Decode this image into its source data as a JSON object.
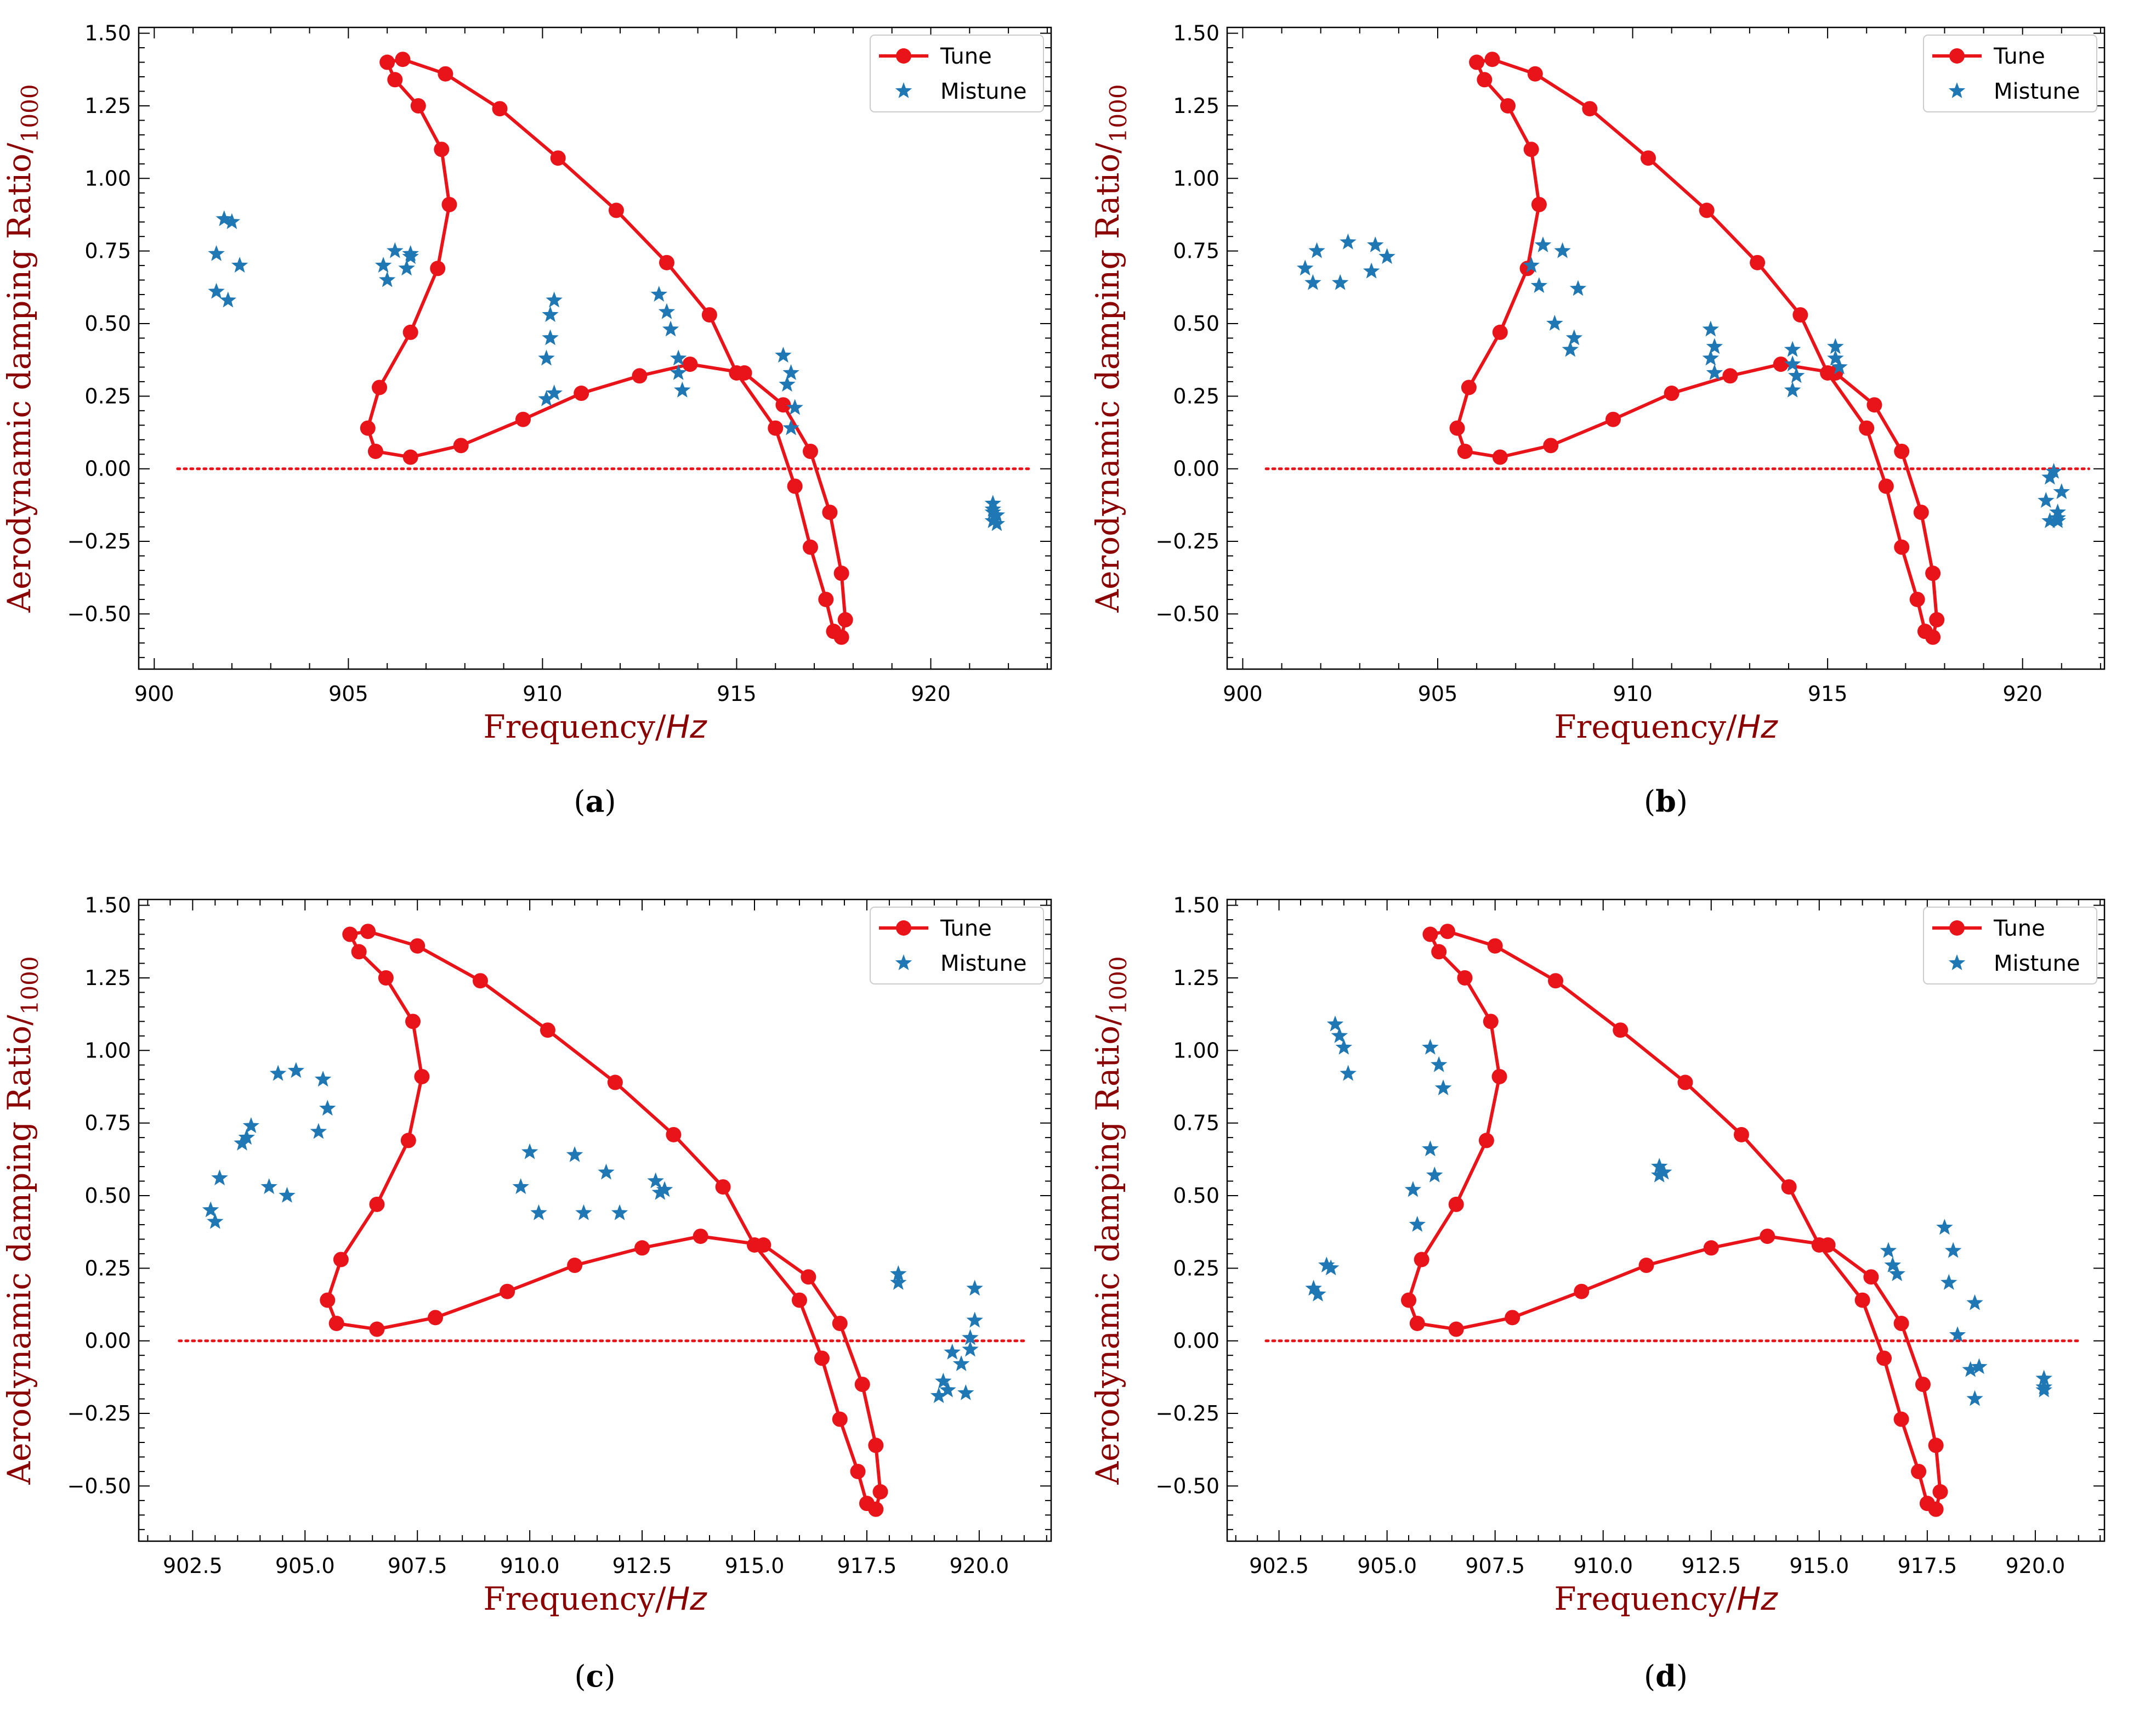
{
  "colors": {
    "tune": "#e8141a",
    "mistune": "#1f77b4",
    "zero_line": "#e8141a",
    "axis_label": "#8b0000",
    "frame": "#000000"
  },
  "chart_data": [
    {
      "id": "a",
      "type": "line+scatter",
      "caption_letter": "a",
      "xlabel_main": "Frequency/",
      "xlabel_unit": "Hz",
      "ylabel": "Aerodynamic damping Ratio/",
      "ylabel_sub": "1000",
      "xlim": [
        899.6,
        923.1
      ],
      "ylim": [
        -0.69,
        1.52
      ],
      "xticks": [
        900,
        905,
        910,
        915,
        920
      ],
      "xtick_labels": [
        "900",
        "905",
        "910",
        "915",
        "920"
      ],
      "yticks": [
        -0.5,
        -0.25,
        0.0,
        0.25,
        0.5,
        0.75,
        1.0,
        1.25,
        1.5
      ],
      "ytick_labels": [
        "−0.50",
        "−0.25",
        "0.00",
        "0.25",
        "0.50",
        "0.75",
        "1.00",
        "1.25",
        "1.50"
      ],
      "zero_line_x": [
        900.6,
        922.6
      ],
      "legend": [
        "Tune",
        "Mistune"
      ],
      "tune": {
        "x": [
          906.0,
          906.2,
          906.8,
          907.4,
          907.6,
          907.3,
          906.6,
          905.8,
          905.5,
          905.7,
          906.6,
          907.9,
          909.5,
          911.0,
          912.5,
          913.8,
          915.2,
          916.2,
          916.9,
          917.4,
          917.7,
          917.8,
          917.7,
          917.5,
          917.3,
          916.9,
          916.5,
          916.0,
          915.0,
          914.3,
          913.2,
          911.9,
          910.4,
          908.9,
          907.5,
          906.4,
          906.0
        ],
        "y": [
          1.4,
          1.34,
          1.25,
          1.1,
          0.91,
          0.69,
          0.47,
          0.28,
          0.14,
          0.06,
          0.04,
          0.08,
          0.17,
          0.26,
          0.32,
          0.36,
          0.33,
          0.22,
          0.06,
          -0.15,
          -0.36,
          -0.52,
          -0.58,
          -0.56,
          -0.45,
          -0.27,
          -0.06,
          0.14,
          0.33,
          0.53,
          0.71,
          0.89,
          1.07,
          1.24,
          1.36,
          1.41,
          1.4
        ]
      },
      "mistune": {
        "x": [
          901.6,
          901.6,
          901.8,
          901.9,
          902.0,
          902.2,
          905.9,
          906.0,
          906.2,
          906.5,
          906.6,
          906.6,
          910.1,
          910.1,
          910.2,
          910.2,
          910.3,
          910.3,
          913.0,
          913.2,
          913.3,
          913.5,
          913.6,
          913.5,
          916.2,
          916.3,
          916.4,
          916.5,
          916.4,
          921.6,
          921.6,
          921.7,
          921.6,
          921.7,
          921.6
        ],
        "y": [
          0.74,
          0.61,
          0.86,
          0.58,
          0.85,
          0.7,
          0.7,
          0.65,
          0.75,
          0.69,
          0.74,
          0.73,
          0.24,
          0.38,
          0.45,
          0.53,
          0.58,
          0.26,
          0.6,
          0.54,
          0.48,
          0.38,
          0.27,
          0.33,
          0.39,
          0.29,
          0.33,
          0.21,
          0.14,
          -0.12,
          -0.14,
          -0.16,
          -0.18,
          -0.19,
          -0.15
        ]
      }
    },
    {
      "id": "b",
      "type": "line+scatter",
      "caption_letter": "b",
      "xlabel_main": "Frequency/",
      "xlabel_unit": "Hz",
      "ylabel": "Aerodynamic damping Ratio/",
      "ylabel_sub": "1000",
      "xlim": [
        899.6,
        922.1
      ],
      "ylim": [
        -0.69,
        1.52
      ],
      "xticks": [
        900,
        905,
        910,
        915,
        920
      ],
      "xtick_labels": [
        "900",
        "905",
        "910",
        "915",
        "920"
      ],
      "yticks": [
        -0.5,
        -0.25,
        0.0,
        0.25,
        0.5,
        0.75,
        1.0,
        1.25,
        1.5
      ],
      "ytick_labels": [
        "−0.50",
        "−0.25",
        "0.00",
        "0.25",
        "0.50",
        "0.75",
        "1.00",
        "1.25",
        "1.50"
      ],
      "zero_line_x": [
        900.6,
        921.7
      ],
      "legend": [
        "Tune",
        "Mistune"
      ],
      "tune": {
        "x": [
          906.0,
          906.2,
          906.8,
          907.4,
          907.6,
          907.3,
          906.6,
          905.8,
          905.5,
          905.7,
          906.6,
          907.9,
          909.5,
          911.0,
          912.5,
          913.8,
          915.2,
          916.2,
          916.9,
          917.4,
          917.7,
          917.8,
          917.7,
          917.5,
          917.3,
          916.9,
          916.5,
          916.0,
          915.0,
          914.3,
          913.2,
          911.9,
          910.4,
          908.9,
          907.5,
          906.4,
          906.0
        ],
        "y": [
          1.4,
          1.34,
          1.25,
          1.1,
          0.91,
          0.69,
          0.47,
          0.28,
          0.14,
          0.06,
          0.04,
          0.08,
          0.17,
          0.26,
          0.32,
          0.36,
          0.33,
          0.22,
          0.06,
          -0.15,
          -0.36,
          -0.52,
          -0.58,
          -0.56,
          -0.45,
          -0.27,
          -0.06,
          0.14,
          0.33,
          0.53,
          0.71,
          0.89,
          1.07,
          1.24,
          1.36,
          1.41,
          1.4
        ]
      },
      "mistune": {
        "x": [
          901.6,
          901.8,
          901.9,
          902.5,
          902.7,
          903.3,
          903.4,
          903.7,
          907.4,
          907.6,
          907.7,
          908.0,
          908.2,
          908.4,
          908.5,
          908.6,
          912.0,
          912.1,
          912.0,
          912.1,
          914.1,
          914.1,
          914.2,
          914.1,
          915.2,
          915.2,
          915.3,
          920.6,
          920.7,
          920.8,
          920.9,
          920.9,
          921.0,
          920.9,
          920.7
        ],
        "y": [
          0.69,
          0.64,
          0.75,
          0.64,
          0.78,
          0.68,
          0.77,
          0.73,
          0.7,
          0.63,
          0.77,
          0.5,
          0.75,
          0.41,
          0.45,
          0.62,
          0.48,
          0.42,
          0.38,
          0.33,
          0.41,
          0.36,
          0.32,
          0.27,
          0.42,
          0.38,
          0.35,
          -0.11,
          -0.03,
          -0.01,
          -0.15,
          -0.17,
          -0.08,
          -0.18,
          -0.18
        ]
      }
    },
    {
      "id": "c",
      "type": "line+scatter",
      "caption_letter": "c",
      "xlabel_main": "Frequency/",
      "xlabel_unit": "Hz",
      "ylabel": "Aerodynamic damping Ratio/",
      "ylabel_sub": "1000",
      "xlim": [
        901.3,
        921.6
      ],
      "ylim": [
        -0.69,
        1.52
      ],
      "xticks": [
        902.5,
        905.0,
        907.5,
        910.0,
        912.5,
        915.0,
        917.5,
        920.0
      ],
      "xtick_labels": [
        "902.5",
        "905.0",
        "907.5",
        "910.0",
        "912.5",
        "915.0",
        "917.5",
        "920.0"
      ],
      "yticks": [
        -0.5,
        -0.25,
        0.0,
        0.25,
        0.5,
        0.75,
        1.0,
        1.25,
        1.5
      ],
      "ytick_labels": [
        "−0.50",
        "−0.25",
        "0.00",
        "0.25",
        "0.50",
        "0.75",
        "1.00",
        "1.25",
        "1.50"
      ],
      "zero_line_x": [
        902.2,
        921.0
      ],
      "legend": [
        "Tune",
        "Mistune"
      ],
      "tune": {
        "x": [
          906.0,
          906.2,
          906.8,
          907.4,
          907.6,
          907.3,
          906.6,
          905.8,
          905.5,
          905.7,
          906.6,
          907.9,
          909.5,
          911.0,
          912.5,
          913.8,
          915.2,
          916.2,
          916.9,
          917.4,
          917.7,
          917.8,
          917.7,
          917.5,
          917.3,
          916.9,
          916.5,
          916.0,
          915.0,
          914.3,
          913.2,
          911.9,
          910.4,
          908.9,
          907.5,
          906.4,
          906.0
        ],
        "y": [
          1.4,
          1.34,
          1.25,
          1.1,
          0.91,
          0.69,
          0.47,
          0.28,
          0.14,
          0.06,
          0.04,
          0.08,
          0.17,
          0.26,
          0.32,
          0.36,
          0.33,
          0.22,
          0.06,
          -0.15,
          -0.36,
          -0.52,
          -0.58,
          -0.56,
          -0.45,
          -0.27,
          -0.06,
          0.14,
          0.33,
          0.53,
          0.71,
          0.89,
          1.07,
          1.24,
          1.36,
          1.41,
          1.4
        ]
      },
      "mistune": {
        "x": [
          902.9,
          903.0,
          903.1,
          903.6,
          903.7,
          903.8,
          904.2,
          904.4,
          904.6,
          904.8,
          905.3,
          905.4,
          905.5,
          909.8,
          910.0,
          910.2,
          911.0,
          911.2,
          911.7,
          912.0,
          912.8,
          912.9,
          913.0,
          918.2,
          918.2,
          919.1,
          919.2,
          919.3,
          919.4,
          919.6,
          919.8,
          919.9,
          919.9,
          919.8,
          919.7
        ],
        "y": [
          0.45,
          0.41,
          0.56,
          0.68,
          0.7,
          0.74,
          0.53,
          0.92,
          0.5,
          0.93,
          0.72,
          0.9,
          0.8,
          0.53,
          0.65,
          0.44,
          0.64,
          0.44,
          0.58,
          0.44,
          0.55,
          0.51,
          0.52,
          0.23,
          0.2,
          -0.19,
          -0.14,
          -0.17,
          -0.04,
          -0.08,
          0.01,
          0.18,
          0.07,
          -0.03,
          -0.18
        ]
      }
    },
    {
      "id": "d",
      "type": "line+scatter",
      "caption_letter": "d",
      "xlabel_main": "Frequency/",
      "xlabel_unit": "Hz",
      "ylabel": "Aerodynamic damping Ratio/",
      "ylabel_sub": "1000",
      "xlim": [
        901.3,
        921.6
      ],
      "ylim": [
        -0.69,
        1.52
      ],
      "xticks": [
        902.5,
        905.0,
        907.5,
        910.0,
        912.5,
        915.0,
        917.5,
        920.0
      ],
      "xtick_labels": [
        "902.5",
        "905.0",
        "907.5",
        "910.0",
        "912.5",
        "915.0",
        "917.5",
        "920.0"
      ],
      "yticks": [
        -0.5,
        -0.25,
        0.0,
        0.25,
        0.5,
        0.75,
        1.0,
        1.25,
        1.5
      ],
      "ytick_labels": [
        "−0.50",
        "−0.25",
        "0.00",
        "0.25",
        "0.50",
        "0.75",
        "1.00",
        "1.25",
        "1.50"
      ],
      "zero_line_x": [
        902.2,
        921.0
      ],
      "legend": [
        "Tune",
        "Mistune"
      ],
      "tune": {
        "x": [
          906.0,
          906.2,
          906.8,
          907.4,
          907.6,
          907.3,
          906.6,
          905.8,
          905.5,
          905.7,
          906.6,
          907.9,
          909.5,
          911.0,
          912.5,
          913.8,
          915.2,
          916.2,
          916.9,
          917.4,
          917.7,
          917.8,
          917.7,
          917.5,
          917.3,
          916.9,
          916.5,
          916.0,
          915.0,
          914.3,
          913.2,
          911.9,
          910.4,
          908.9,
          907.5,
          906.4,
          906.0
        ],
        "y": [
          1.4,
          1.34,
          1.25,
          1.1,
          0.91,
          0.69,
          0.47,
          0.28,
          0.14,
          0.06,
          0.04,
          0.08,
          0.17,
          0.26,
          0.32,
          0.36,
          0.33,
          0.22,
          0.06,
          -0.15,
          -0.36,
          -0.52,
          -0.58,
          -0.56,
          -0.45,
          -0.27,
          -0.06,
          0.14,
          0.33,
          0.53,
          0.71,
          0.89,
          1.07,
          1.24,
          1.36,
          1.41,
          1.4
        ]
      },
      "mistune": {
        "x": [
          903.3,
          903.4,
          903.6,
          903.7,
          903.8,
          903.9,
          904.0,
          904.1,
          905.6,
          905.7,
          906.0,
          906.0,
          906.1,
          906.2,
          906.3,
          911.3,
          911.4,
          911.3,
          916.6,
          916.7,
          916.8,
          917.9,
          918.0,
          918.1,
          918.2,
          918.5,
          918.6,
          918.7,
          918.6,
          920.2,
          920.2,
          920.2
        ],
        "y": [
          0.18,
          0.16,
          0.26,
          0.25,
          1.09,
          1.05,
          1.01,
          0.92,
          0.52,
          0.4,
          1.01,
          0.66,
          0.57,
          0.95,
          0.87,
          0.6,
          0.58,
          0.57,
          0.31,
          0.26,
          0.23,
          0.39,
          0.2,
          0.31,
          0.02,
          -0.1,
          0.13,
          -0.09,
          -0.2,
          -0.13,
          -0.16,
          -0.17
        ]
      }
    }
  ]
}
